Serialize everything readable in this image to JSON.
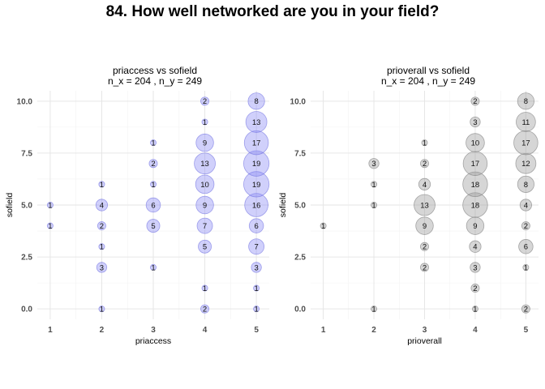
{
  "figure": {
    "title": "84. How well networked are you in your field?"
  },
  "chart_data": [
    {
      "type": "scatter",
      "title": "priaccess vs sofield",
      "subtitle": "n_x = 204 , n_y = 249",
      "xlabel": "priaccess",
      "ylabel": "sofield",
      "x_ticks": [
        "1",
        "2",
        "3",
        "4",
        "5"
      ],
      "y_ticks": [
        "0.0",
        "2.5",
        "5.0",
        "7.5",
        "10.0"
      ],
      "xlim": [
        0.75,
        5.25
      ],
      "ylim": [
        -0.5,
        10.5
      ],
      "grid": true,
      "legend": "none",
      "fill_color": "#8a8af5",
      "stroke_color": "#6a6ae0",
      "points": [
        {
          "x": 1,
          "y": 4,
          "n": 1
        },
        {
          "x": 1,
          "y": 5,
          "n": 1
        },
        {
          "x": 2,
          "y": 0,
          "n": 1
        },
        {
          "x": 2,
          "y": 2,
          "n": 3
        },
        {
          "x": 2,
          "y": 3,
          "n": 1
        },
        {
          "x": 2,
          "y": 4,
          "n": 2
        },
        {
          "x": 2,
          "y": 5,
          "n": 4
        },
        {
          "x": 2,
          "y": 6,
          "n": 1
        },
        {
          "x": 3,
          "y": 2,
          "n": 1
        },
        {
          "x": 3,
          "y": 4,
          "n": 5
        },
        {
          "x": 3,
          "y": 5,
          "n": 6
        },
        {
          "x": 3,
          "y": 6,
          "n": 1
        },
        {
          "x": 3,
          "y": 7,
          "n": 2
        },
        {
          "x": 3,
          "y": 8,
          "n": 1
        },
        {
          "x": 4,
          "y": 0,
          "n": 2
        },
        {
          "x": 4,
          "y": 1,
          "n": 1
        },
        {
          "x": 4,
          "y": 3,
          "n": 5
        },
        {
          "x": 4,
          "y": 4,
          "n": 7
        },
        {
          "x": 4,
          "y": 5,
          "n": 9
        },
        {
          "x": 4,
          "y": 6,
          "n": 10
        },
        {
          "x": 4,
          "y": 7,
          "n": 13
        },
        {
          "x": 4,
          "y": 8,
          "n": 9
        },
        {
          "x": 4,
          "y": 9,
          "n": 1
        },
        {
          "x": 4,
          "y": 10,
          "n": 2
        },
        {
          "x": 5,
          "y": 0,
          "n": 1
        },
        {
          "x": 5,
          "y": 1,
          "n": 1
        },
        {
          "x": 5,
          "y": 2,
          "n": 3
        },
        {
          "x": 5,
          "y": 3,
          "n": 7
        },
        {
          "x": 5,
          "y": 4,
          "n": 6
        },
        {
          "x": 5,
          "y": 5,
          "n": 16
        },
        {
          "x": 5,
          "y": 6,
          "n": 19
        },
        {
          "x": 5,
          "y": 7,
          "n": 19
        },
        {
          "x": 5,
          "y": 8,
          "n": 17
        },
        {
          "x": 5,
          "y": 9,
          "n": 13
        },
        {
          "x": 5,
          "y": 10,
          "n": 8
        }
      ]
    },
    {
      "type": "scatter",
      "title": "prioverall vs sofield",
      "subtitle": "n_x = 204 , n_y = 249",
      "xlabel": "prioverall",
      "ylabel": "sofield",
      "x_ticks": [
        "1",
        "2",
        "3",
        "4",
        "5"
      ],
      "y_ticks": [
        "0.0",
        "2.5",
        "5.0",
        "7.5",
        "10.0"
      ],
      "xlim": [
        0.75,
        5.25
      ],
      "ylim": [
        -0.5,
        10.5
      ],
      "grid": true,
      "legend": "none",
      "fill_color": "#999999",
      "stroke_color": "#777777",
      "points": [
        {
          "x": 1,
          "y": 4,
          "n": 1
        },
        {
          "x": 2,
          "y": 0,
          "n": 1
        },
        {
          "x": 2,
          "y": 5,
          "n": 1
        },
        {
          "x": 2,
          "y": 6,
          "n": 1
        },
        {
          "x": 2,
          "y": 7,
          "n": 3
        },
        {
          "x": 3,
          "y": 2,
          "n": 2
        },
        {
          "x": 3,
          "y": 3,
          "n": 2
        },
        {
          "x": 3,
          "y": 4,
          "n": 9
        },
        {
          "x": 3,
          "y": 5,
          "n": 13
        },
        {
          "x": 3,
          "y": 6,
          "n": 4
        },
        {
          "x": 3,
          "y": 7,
          "n": 2
        },
        {
          "x": 3,
          "y": 8,
          "n": 1
        },
        {
          "x": 4,
          "y": 0,
          "n": 1
        },
        {
          "x": 4,
          "y": 1,
          "n": 2
        },
        {
          "x": 4,
          "y": 2,
          "n": 3
        },
        {
          "x": 4,
          "y": 3,
          "n": 4
        },
        {
          "x": 4,
          "y": 4,
          "n": 9
        },
        {
          "x": 4,
          "y": 5,
          "n": 18
        },
        {
          "x": 4,
          "y": 6,
          "n": 18
        },
        {
          "x": 4,
          "y": 7,
          "n": 17
        },
        {
          "x": 4,
          "y": 8,
          "n": 10
        },
        {
          "x": 4,
          "y": 9,
          "n": 3
        },
        {
          "x": 4,
          "y": 10,
          "n": 2
        },
        {
          "x": 5,
          "y": 0,
          "n": 2
        },
        {
          "x": 5,
          "y": 2,
          "n": 1
        },
        {
          "x": 5,
          "y": 3,
          "n": 6
        },
        {
          "x": 5,
          "y": 4,
          "n": 2
        },
        {
          "x": 5,
          "y": 5,
          "n": 4
        },
        {
          "x": 5,
          "y": 6,
          "n": 8
        },
        {
          "x": 5,
          "y": 7,
          "n": 12
        },
        {
          "x": 5,
          "y": 8,
          "n": 17
        },
        {
          "x": 5,
          "y": 9,
          "n": 11
        },
        {
          "x": 5,
          "y": 10,
          "n": 8
        }
      ]
    }
  ]
}
